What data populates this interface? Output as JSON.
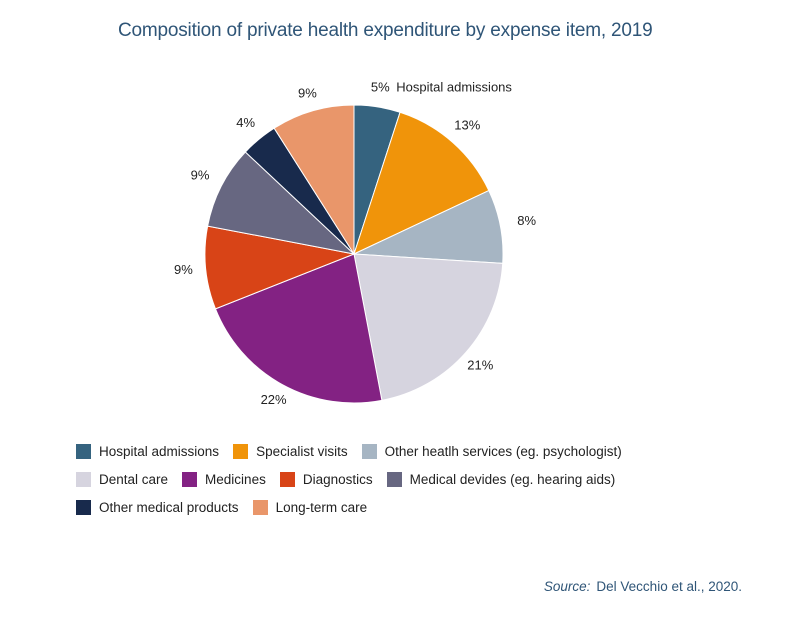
{
  "chart_data": {
    "type": "pie",
    "title": "Composition of private health expenditure by expense item, 2019",
    "categories": [
      "Hospital admissions",
      "Specialist visits",
      "Other heatlh services (eg. psychologist)",
      "Dental care",
      "Medicines",
      "Diagnostics",
      "Medical devides (eg. hearing aids)",
      "Other medical products",
      "Long-term care"
    ],
    "values": [
      5,
      13,
      8,
      21,
      22,
      9,
      9,
      4,
      9
    ],
    "value_labels": [
      "5%",
      "13%",
      "8%",
      "21%",
      "22%",
      "9%",
      "9%",
      "4%",
      "9%"
    ],
    "slice_annotation": "Hospital admissions",
    "colors": [
      "#35637f",
      "#f0940a",
      "#a6b5c3",
      "#d6d4df",
      "#832283",
      "#d84417",
      "#676781",
      "#182a4c",
      "#e9966a"
    ],
    "legend_placement": "bottom"
  },
  "source": {
    "label": "Source:",
    "text": "Del Vecchio et al., 2020."
  }
}
